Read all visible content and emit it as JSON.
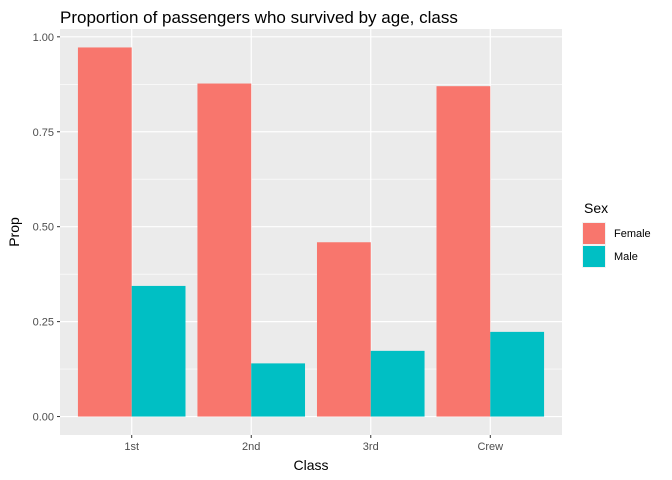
{
  "chart_data": {
    "type": "bar",
    "title": "Proportion of passengers who survived by age, class",
    "xlabel": "Class",
    "ylabel": "Prop",
    "categories": [
      "1st",
      "2nd",
      "3rd",
      "Crew"
    ],
    "series": [
      {
        "name": "Female",
        "color": "#F8766D",
        "values": [
          0.972,
          0.877,
          0.459,
          0.87
        ]
      },
      {
        "name": "Male",
        "color": "#00BFC4",
        "values": [
          0.344,
          0.14,
          0.173,
          0.223
        ]
      }
    ],
    "ylim": [
      -0.0486,
      1.0206
    ],
    "yticks": [
      0.0,
      0.25,
      0.5,
      0.75,
      1.0
    ],
    "ytick_labels": [
      "0.00",
      "0.25",
      "0.50",
      "0.75",
      "1.00"
    ],
    "grid": true,
    "legend": {
      "title": "Sex",
      "position": "right"
    },
    "panel_background": "#EBEBEB",
    "grid_color": "#FFFFFF"
  }
}
